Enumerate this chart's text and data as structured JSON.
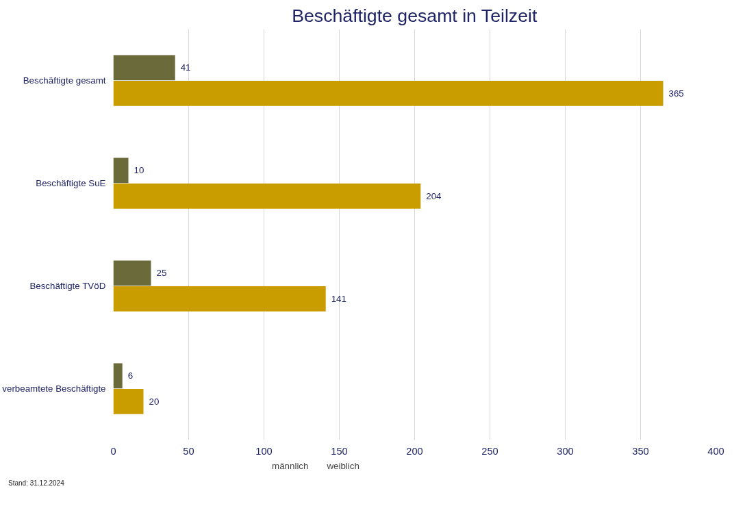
{
  "chart_data": {
    "type": "bar",
    "orientation": "horizontal",
    "title": "Beschäftigte gesamt in Teilzeit",
    "categories": [
      "Beschäftigte gesamt",
      "Beschäftigte SuE",
      "Beschäftigte TVöD",
      "verbeamtete Beschäftigte"
    ],
    "series": [
      {
        "name": "männlich",
        "color": "#6b6a3b",
        "values": [
          41,
          10,
          25,
          6
        ]
      },
      {
        "name": "weiblich",
        "color": "#c99c00",
        "values": [
          365,
          204,
          141,
          20
        ]
      }
    ],
    "xlim": [
      0,
      400
    ],
    "xticks": [
      0,
      50,
      100,
      150,
      200,
      250,
      300,
      350,
      400
    ],
    "grid": "x",
    "legend": "bottom",
    "data_labels": true,
    "annotations": [
      "Stand: 31.12.2024"
    ]
  }
}
